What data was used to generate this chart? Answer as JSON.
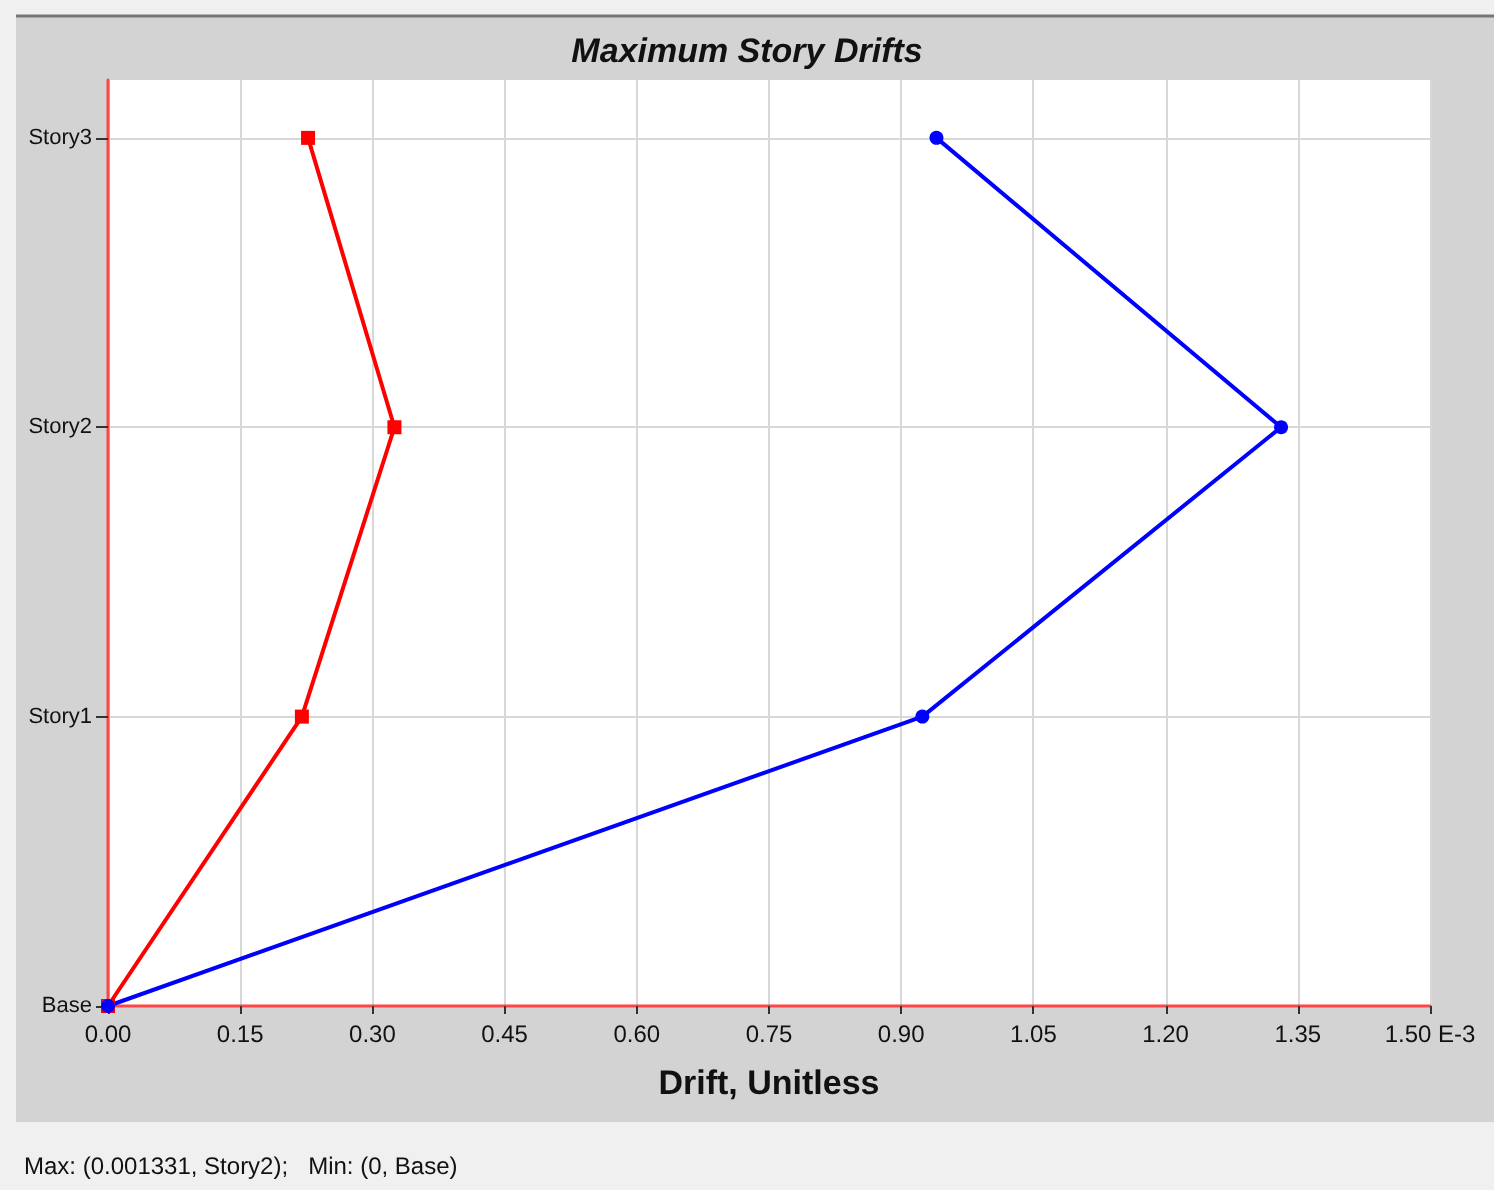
{
  "chart_data": {
    "type": "line",
    "title": "Maximum Story Drifts",
    "xlabel": "Drift, Unitless",
    "categories": [
      "Story3",
      "Story2",
      "Story1",
      "Base"
    ],
    "orientation": "horizontal",
    "series": [
      {
        "color": "#ff0000",
        "marker": "square",
        "values": [
          0.227,
          0.325,
          0.22,
          0
        ]
      },
      {
        "color": "#0000ff",
        "marker": "circle",
        "values": [
          0.94,
          1.331,
          0.924,
          0
        ]
      }
    ],
    "xlim": [
      0,
      1.5
    ],
    "xticks": [
      {
        "value": 0,
        "label": "0.00"
      },
      {
        "value": 0.15,
        "label": "0.15"
      },
      {
        "value": 0.3,
        "label": "0.30"
      },
      {
        "value": 0.45,
        "label": "0.45"
      },
      {
        "value": 0.6,
        "label": "0.60"
      },
      {
        "value": 0.75,
        "label": "0.75"
      },
      {
        "value": 0.9,
        "label": "0.90"
      },
      {
        "value": 1.05,
        "label": "1.05"
      },
      {
        "value": 1.2,
        "label": "1.20"
      },
      {
        "value": 1.35,
        "label": "1.35"
      },
      {
        "value": 1.5,
        "label": "1.50 E-3"
      }
    ],
    "grid": true,
    "annotations": [
      "Max: (0.001331, Story2);   Min: (0, Base)"
    ]
  }
}
